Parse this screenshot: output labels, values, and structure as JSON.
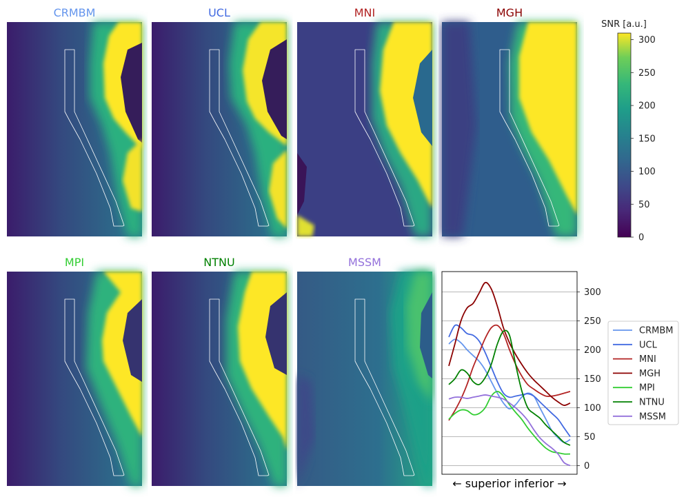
{
  "panels": [
    {
      "title": "CRMBM",
      "color": "#6495ED"
    },
    {
      "title": "UCL",
      "color": "#4169E1"
    },
    {
      "title": "MNI",
      "color": "#B22222"
    },
    {
      "title": "MGH",
      "color": "#8B0000"
    },
    {
      "title": "MPI",
      "color": "#32CD32"
    },
    {
      "title": "NTNU",
      "color": "#008000"
    },
    {
      "title": "MSSM",
      "color": "#9370DB"
    }
  ],
  "colorbar": {
    "label": "SNR [a.u.]",
    "ticks": [
      "0",
      "50",
      "100",
      "150",
      "200",
      "250",
      "300"
    ],
    "range": [
      0,
      310
    ],
    "colormap": "viridis"
  },
  "chart_data": {
    "type": "line",
    "xlabel": "← superior    inferior →",
    "ylabel": "",
    "ylim": [
      -15,
      335
    ],
    "yticks": [
      0,
      50,
      100,
      150,
      200,
      250,
      300
    ],
    "grid": true,
    "legend_position": "right",
    "x": [
      0,
      0.05,
      0.1,
      0.15,
      0.2,
      0.25,
      0.3,
      0.35,
      0.4,
      0.45,
      0.5,
      0.55,
      0.6,
      0.65,
      0.7,
      0.75,
      0.8,
      0.85,
      0.9,
      0.95,
      1.0
    ],
    "series": [
      {
        "name": "CRMBM",
        "color": "#6495ED",
        "values": [
          210,
          218,
          212,
          200,
          190,
          180,
          165,
          145,
          125,
          108,
          98,
          105,
          118,
          125,
          120,
          100,
          80,
          60,
          48,
          40,
          45
        ]
      },
      {
        "name": "UCL",
        "color": "#4169E1",
        "values": [
          222,
          242,
          238,
          228,
          225,
          215,
          195,
          170,
          145,
          125,
          118,
          120,
          122,
          124,
          120,
          110,
          100,
          90,
          80,
          65,
          50
        ]
      },
      {
        "name": "MNI",
        "color": "#B22222",
        "values": [
          78,
          95,
          115,
          140,
          170,
          195,
          220,
          238,
          242,
          228,
          200,
          175,
          155,
          140,
          132,
          125,
          120,
          120,
          122,
          125,
          128
        ]
      },
      {
        "name": "MGH",
        "color": "#8B0000",
        "values": [
          172,
          210,
          250,
          272,
          280,
          298,
          316,
          305,
          275,
          238,
          212,
          192,
          175,
          160,
          148,
          138,
          128,
          118,
          110,
          104,
          108
        ]
      },
      {
        "name": "MPI",
        "color": "#32CD32",
        "values": [
          80,
          90,
          96,
          95,
          88,
          90,
          100,
          120,
          128,
          120,
          105,
          92,
          80,
          65,
          52,
          40,
          30,
          24,
          22,
          20,
          20
        ]
      },
      {
        "name": "NTNU",
        "color": "#008000",
        "values": [
          140,
          150,
          165,
          160,
          145,
          140,
          152,
          175,
          210,
          232,
          225,
          175,
          130,
          100,
          90,
          82,
          70,
          60,
          50,
          40,
          35
        ]
      },
      {
        "name": "MSSM",
        "color": "#9370DB",
        "values": [
          115,
          118,
          118,
          116,
          118,
          120,
          122,
          120,
          118,
          115,
          108,
          100,
          90,
          78,
          62,
          48,
          38,
          30,
          20,
          5,
          0
        ]
      }
    ]
  }
}
